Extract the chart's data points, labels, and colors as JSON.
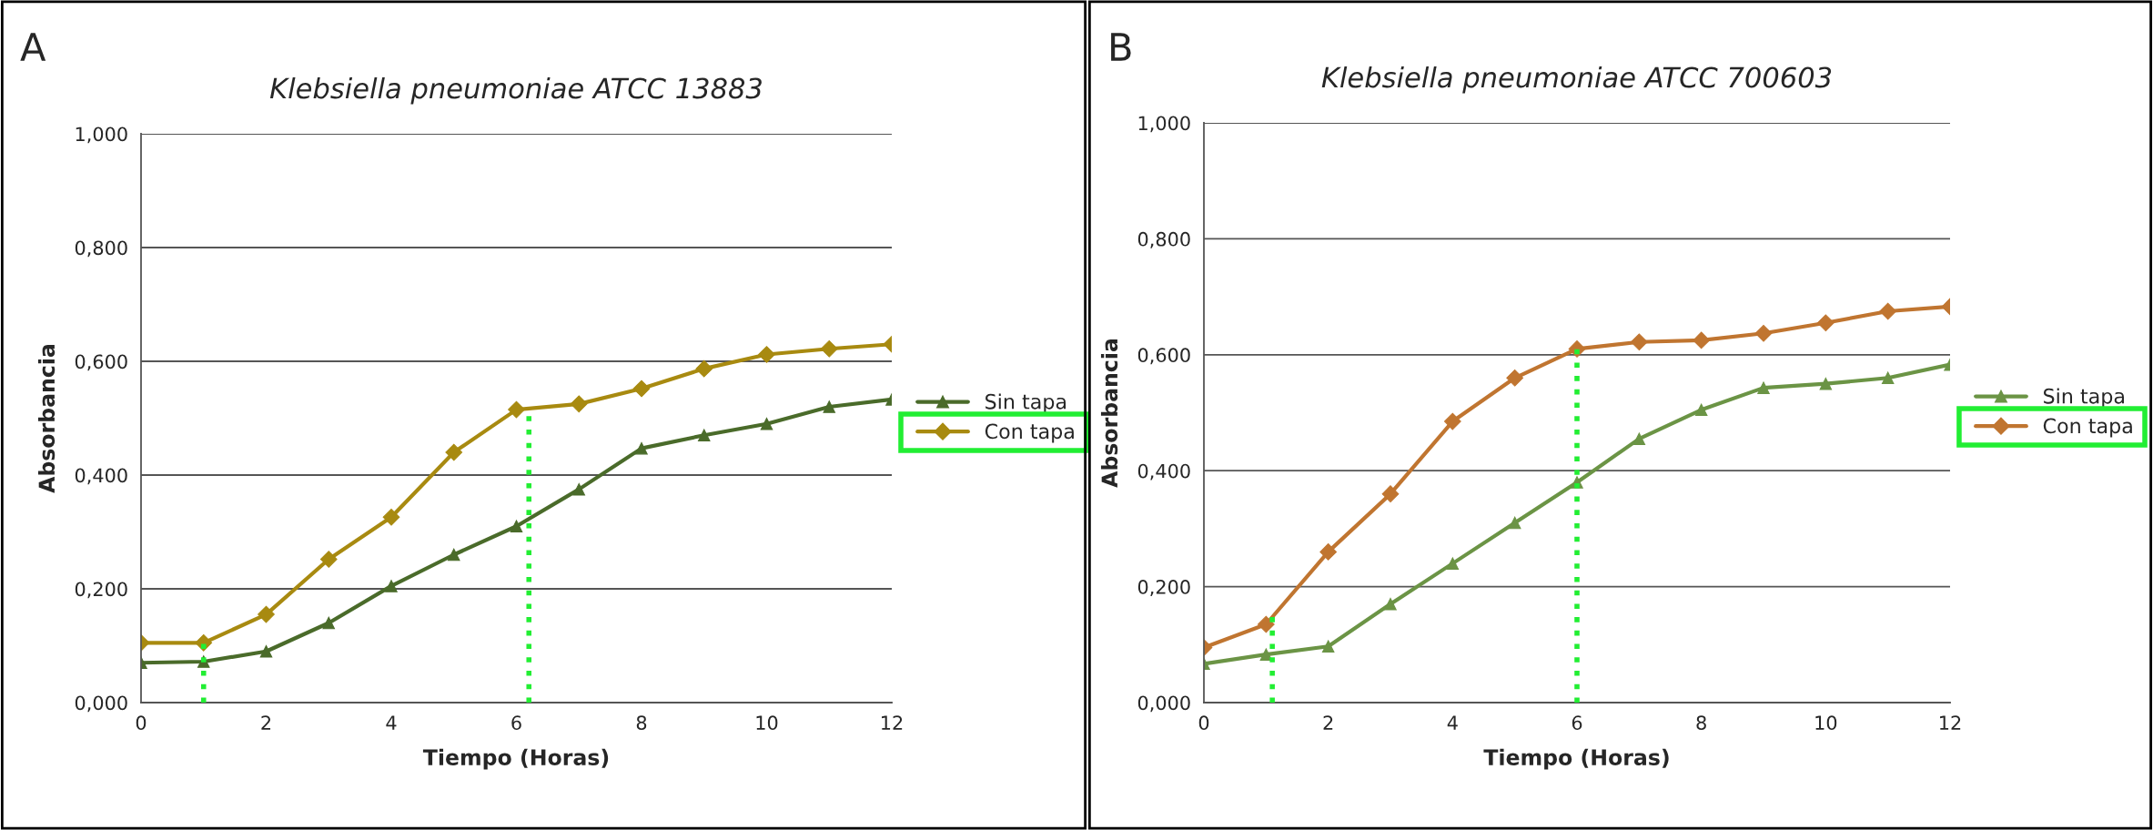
{
  "chart_data": [
    {
      "type": "line",
      "title": "Klebsiella pneumoniae ATCC 13883",
      "xlabel": "Tiempo (Horas)",
      "ylabel": "Absorbancia",
      "annotations": [
        "A"
      ],
      "x": [
        0,
        1,
        2,
        3,
        4,
        5,
        6,
        7,
        8,
        9,
        10,
        11,
        12
      ],
      "series": [
        {
          "name": "Sin tapa",
          "color": "#4a6b2a",
          "marker": "triangle",
          "values": [
            0.07,
            0.072,
            0.09,
            0.14,
            0.205,
            0.26,
            0.31,
            0.375,
            0.447,
            0.47,
            0.49,
            0.52,
            0.533
          ]
        },
        {
          "name": "Con tapa",
          "color": "#a88a10",
          "marker": "diamond",
          "values": [
            0.105,
            0.105,
            0.155,
            0.252,
            0.326,
            0.44,
            0.515,
            0.525,
            0.552,
            0.587,
            0.612,
            0.622,
            0.63
          ]
        }
      ],
      "ref_lines": [
        {
          "axis": "x",
          "value": 1,
          "color": "#22ee33",
          "line_style": "dotted"
        },
        {
          "axis": "x",
          "value": 6.2,
          "color": "#22ee33",
          "line_style": "dotted"
        }
      ],
      "xlim": [
        0,
        12
      ],
      "xticks": [
        0,
        2,
        4,
        6,
        8,
        10,
        12
      ],
      "ylim": [
        0,
        1
      ],
      "yticks": [
        {
          "value": 0,
          "label": "0,000"
        },
        {
          "value": 0.2,
          "label": "0,200"
        },
        {
          "value": 0.4,
          "label": "0,400"
        },
        {
          "value": 0.6,
          "label": "0,600"
        },
        {
          "value": 0.8,
          "label": "0,800"
        },
        {
          "value": 1,
          "label": "1,000"
        }
      ],
      "grid": "y",
      "legend": "right",
      "line_style": "solid"
    },
    {
      "type": "line",
      "title": "Klebsiella pneumoniae ATCC 700603",
      "xlabel": "Tiempo (Horas)",
      "ylabel": "Absorbancia",
      "annotations": [
        "B"
      ],
      "x": [
        0,
        1,
        2,
        3,
        4,
        5,
        6,
        7,
        8,
        9,
        10,
        11,
        12
      ],
      "series": [
        {
          "name": "Sin tapa",
          "color": "#6b9445",
          "marker": "triangle",
          "values": [
            0.067,
            0.083,
            0.097,
            0.17,
            0.24,
            0.31,
            0.38,
            0.455,
            0.505,
            0.543,
            0.55,
            0.56,
            0.583
          ]
        },
        {
          "name": "Con tapa",
          "color": "#c07530",
          "marker": "diamond",
          "values": [
            0.095,
            0.135,
            0.26,
            0.36,
            0.485,
            0.56,
            0.61,
            0.622,
            0.625,
            0.637,
            0.655,
            0.675,
            0.683
          ]
        }
      ],
      "ref_lines": [
        {
          "axis": "x",
          "value": 1.1,
          "color": "#22ee33",
          "line_style": "dotted"
        },
        {
          "axis": "x",
          "value": 6,
          "color": "#22ee33",
          "line_style": "dotted"
        }
      ],
      "xlim": [
        0,
        12
      ],
      "xticks": [
        0,
        2,
        4,
        6,
        8,
        10,
        12
      ],
      "ylim": [
        0,
        1
      ],
      "yticks": [
        {
          "value": 0,
          "label": "0,000"
        },
        {
          "value": 0.2,
          "label": "0,200"
        },
        {
          "value": 0.4,
          "label": "0,400"
        },
        {
          "value": 0.6,
          "label": "0,600"
        },
        {
          "value": 0.8,
          "label": "0,800"
        },
        {
          "value": 1,
          "label": "1,000"
        }
      ],
      "grid": "y",
      "legend": "right",
      "line_style": "solid"
    }
  ]
}
